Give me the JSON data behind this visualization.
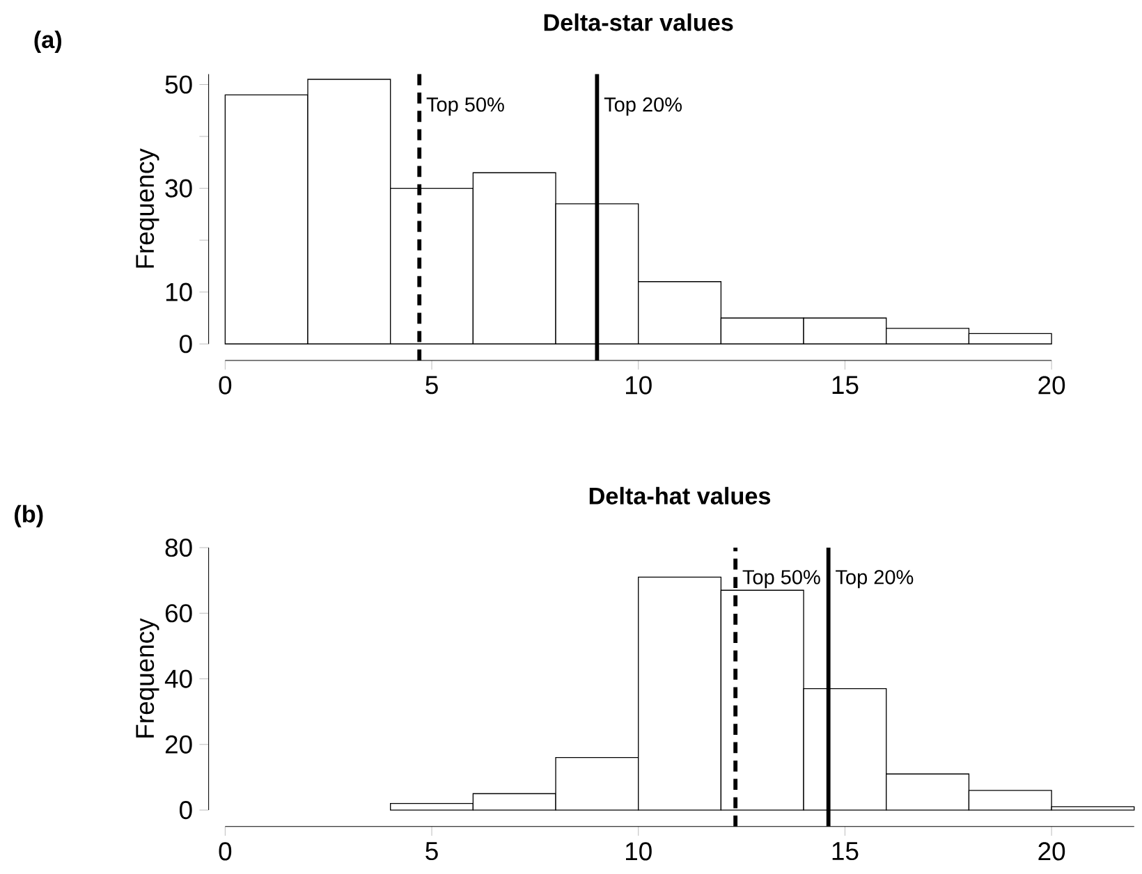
{
  "chart_data": [
    {
      "type": "histogram",
      "title": "Delta-star values",
      "ylabel": "Frequency",
      "bins": [
        0,
        2,
        4,
        6,
        8,
        10,
        12,
        14,
        16,
        18,
        20
      ],
      "values": [
        48,
        51,
        30,
        33,
        27,
        12,
        5,
        5,
        3,
        2
      ],
      "color": "#ffffff",
      "xlim": [
        0,
        20
      ],
      "xticks": [
        0,
        5,
        10,
        15,
        20
      ],
      "ylim": [
        0,
        52
      ],
      "yticks": [
        0,
        10,
        {
          "value": 20,
          "label": null
        },
        30,
        {
          "value": 40,
          "label": null
        },
        50
      ],
      "ref_lines": [
        {
          "axis": "x",
          "value": 4.7,
          "label": "Top 50%",
          "color": "#000000",
          "line_style": "dashed"
        },
        {
          "axis": "x",
          "value": 9,
          "label": "Top 20%",
          "color": "#000000",
          "line_style": "solid"
        }
      ],
      "annotations": [
        "(a)"
      ],
      "grid": false
    },
    {
      "type": "histogram",
      "title": "Delta-hat values",
      "ylabel": "Frequency",
      "bins": [
        4,
        6,
        8,
        10,
        12,
        14,
        16,
        18,
        20,
        22
      ],
      "values": [
        2,
        5,
        16,
        71,
        67,
        37,
        11,
        6,
        1
      ],
      "color": "#ffffff",
      "xlim": [
        0,
        22
      ],
      "xticks": [
        0,
        5,
        10,
        15,
        20
      ],
      "ylim": [
        0,
        80
      ],
      "yticks": [
        0,
        20,
        40,
        60,
        80
      ],
      "ref_lines": [
        {
          "axis": "x",
          "value": 12.35,
          "label": "Top 50%",
          "color": "#000000",
          "line_style": "dashed"
        },
        {
          "axis": "x",
          "value": 14.6,
          "label": "Top 20%",
          "color": "#000000",
          "line_style": "solid"
        }
      ],
      "annotations": [
        "(b)"
      ],
      "grid": false
    }
  ]
}
